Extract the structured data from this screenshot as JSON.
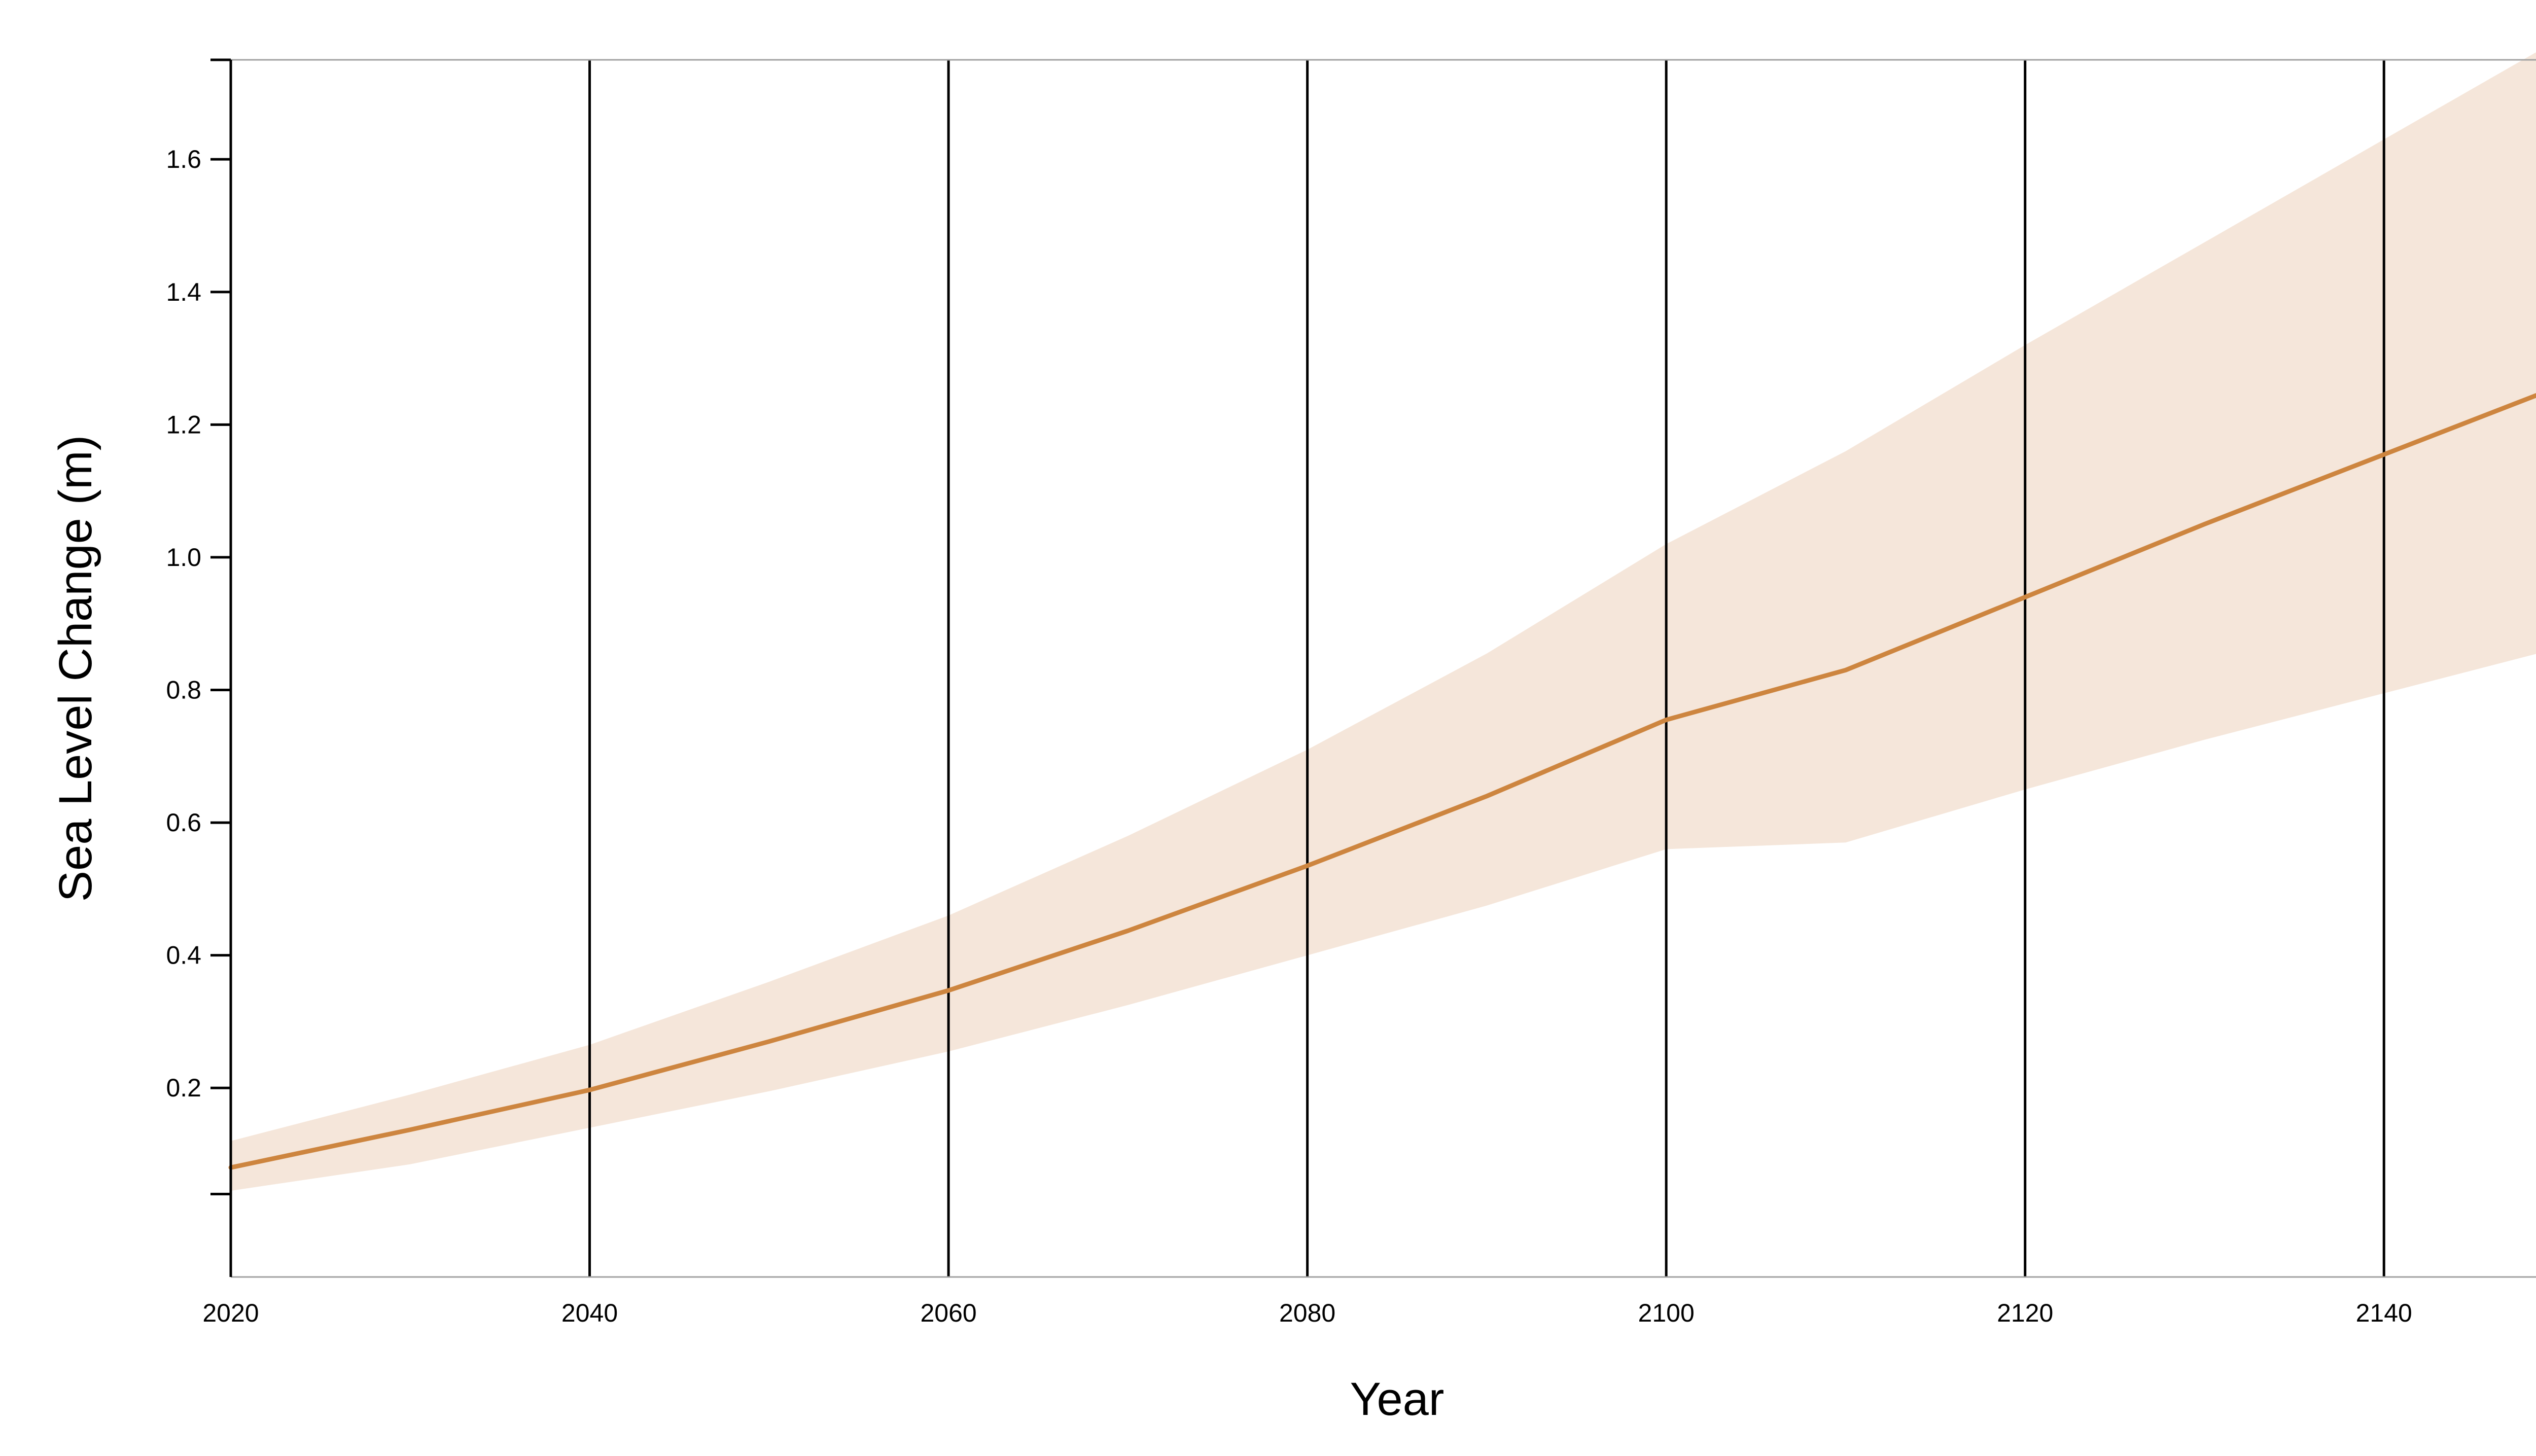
{
  "chart_data": {
    "type": "line",
    "xlabel": "Year",
    "ylabel": "Sea Level Change (m)",
    "xlim": [
      2020,
      2150
    ],
    "ylim": [
      -0.085,
      1.75
    ],
    "x_ticks": [
      2020,
      2040,
      2060,
      2080,
      2100,
      2120,
      2140
    ],
    "y_ticks": [
      0.2,
      0.4,
      0.6,
      0.8,
      1.0,
      1.2,
      1.4,
      1.6
    ],
    "y_tick_labels": [
      "0.2",
      "0.4",
      "0.6",
      "0.8",
      "1.0",
      "1.2",
      "1.4",
      "1.6"
    ],
    "y_extra_unlabeled_ticks": [
      0.04,
      1.75
    ],
    "x": [
      2020,
      2030,
      2040,
      2050,
      2060,
      2070,
      2080,
      2090,
      2100,
      2110,
      2120,
      2130,
      2140,
      2150
    ],
    "series": [
      {
        "values": [
          0.08,
          0.137,
          0.197,
          0.27,
          0.347,
          0.437,
          0.535,
          0.64,
          0.755,
          0.83,
          0.94,
          1.05,
          1.155,
          1.26
        ],
        "lower": [
          0.045,
          0.085,
          0.14,
          0.195,
          0.255,
          0.325,
          0.4,
          0.475,
          0.56,
          0.57,
          0.65,
          0.725,
          0.795,
          0.865
        ],
        "upper": [
          0.12,
          0.19,
          0.265,
          0.36,
          0.46,
          0.58,
          0.71,
          0.855,
          1.02,
          1.16,
          1.32,
          1.475,
          1.63,
          1.785
        ],
        "color": "#cd853f",
        "band_color": "#f5e6da"
      }
    ],
    "grid": {
      "x": true,
      "y": false,
      "grid_color": "#000000"
    },
    "legend": "none"
  }
}
